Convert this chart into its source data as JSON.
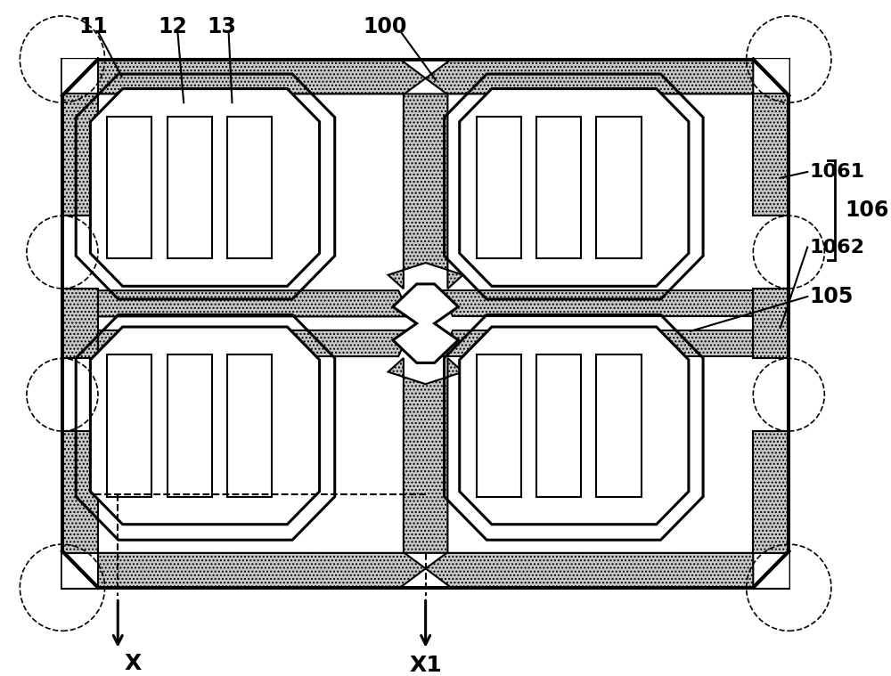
{
  "bg_color": "#ffffff",
  "lc": "#000000",
  "hc": "#c8c8c8",
  "figsize": [
    10.0,
    7.59
  ],
  "dpi": 100,
  "lw_main": 2.2,
  "lw_thin": 1.5,
  "lw_thick": 2.8
}
